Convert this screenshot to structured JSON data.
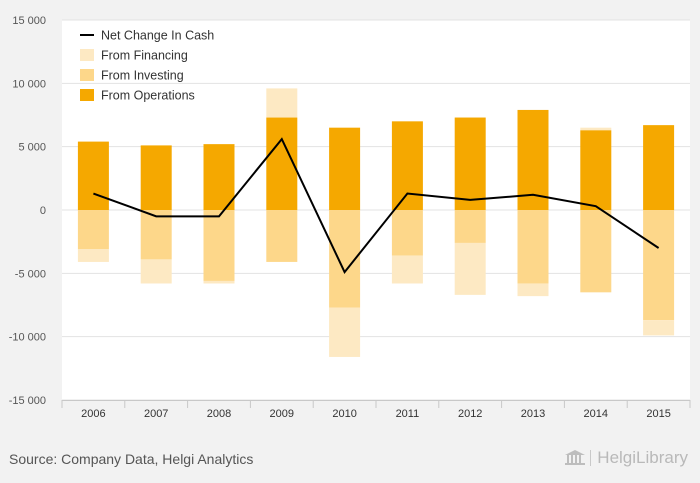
{
  "footer": {
    "source": "Source: Company Data, Helgi Analytics",
    "brand": "HelgiLibrary"
  },
  "colors": {
    "operations": "#f5a800",
    "investing": "#fdd78a",
    "financing": "#fde9c3",
    "net": "#000000",
    "background": "#f2f2f2",
    "plot_background": "#ffffff"
  },
  "chart_data": {
    "type": "bar",
    "stacked": true,
    "categories": [
      "2006",
      "2007",
      "2008",
      "2009",
      "2010",
      "2011",
      "2012",
      "2013",
      "2014",
      "2015"
    ],
    "ylim": [
      -15000,
      15000
    ],
    "yticks": [
      -15000,
      -10000,
      -5000,
      0,
      5000,
      10000,
      15000
    ],
    "ytick_labels": [
      "-15 000",
      "-10 000",
      "-5 000",
      "0",
      "5 000",
      "10 000",
      "15 000"
    ],
    "grid": true,
    "legend_position": "top-left",
    "series": [
      {
        "name": "From Operations",
        "kind": "bar",
        "color": "#f5a800",
        "values": [
          5400,
          5100,
          5200,
          7300,
          6500,
          7000,
          7300,
          7900,
          6300,
          6700
        ]
      },
      {
        "name": "From Investing",
        "kind": "bar",
        "color": "#fdd78a",
        "values": [
          -3100,
          -3900,
          -5600,
          -4100,
          -7700,
          -3600,
          -2600,
          -5800,
          -6500,
          -8700
        ]
      },
      {
        "name": "From Financing",
        "kind": "bar",
        "color": "#fde9c3",
        "values": [
          -1000,
          -1900,
          -200,
          2300,
          -3900,
          -2200,
          -4100,
          -1000,
          200,
          -1200
        ]
      },
      {
        "name": "Net Change In Cash",
        "kind": "line",
        "color": "#000000",
        "values": [
          1300,
          -500,
          -500,
          5600,
          -4900,
          1300,
          800,
          1200,
          300,
          -3000
        ]
      }
    ]
  }
}
